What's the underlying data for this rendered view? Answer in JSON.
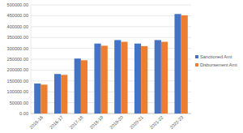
{
  "chart_data": {
    "type": "bar",
    "categories": [
      "2015-16",
      "2016-17",
      "2017-18",
      "2018-19",
      "2019-20",
      "2020-21",
      "2021-22",
      "2022-23"
    ],
    "series": [
      {
        "name": "Sanctioned Amt",
        "color": "#4472c4",
        "values": [
          138000,
          182000,
          253000,
          322000,
          338000,
          322000,
          338000,
          458000
        ]
      },
      {
        "name": "Disbursement Amt",
        "color": "#ed7d31",
        "values": [
          133000,
          178000,
          245000,
          312000,
          330000,
          310000,
          330000,
          452000
        ]
      }
    ],
    "ylim": [
      0,
      500000
    ],
    "yticks": [
      {
        "value": 0,
        "label": "0.00"
      },
      {
        "value": 50000,
        "label": "50000.00"
      },
      {
        "value": 100000,
        "label": "100000.00"
      },
      {
        "value": 150000,
        "label": "150000.00"
      },
      {
        "value": 200000,
        "label": "200000.00"
      },
      {
        "value": 250000,
        "label": "250000.00"
      },
      {
        "value": 300000,
        "label": "300000.00"
      },
      {
        "value": 350000,
        "label": "350000.00"
      },
      {
        "value": 400000,
        "label": "400000.00"
      },
      {
        "value": 450000,
        "label": "450000.00"
      },
      {
        "value": 500000,
        "label": "500000.00"
      }
    ],
    "grid": true,
    "legend": "right"
  }
}
